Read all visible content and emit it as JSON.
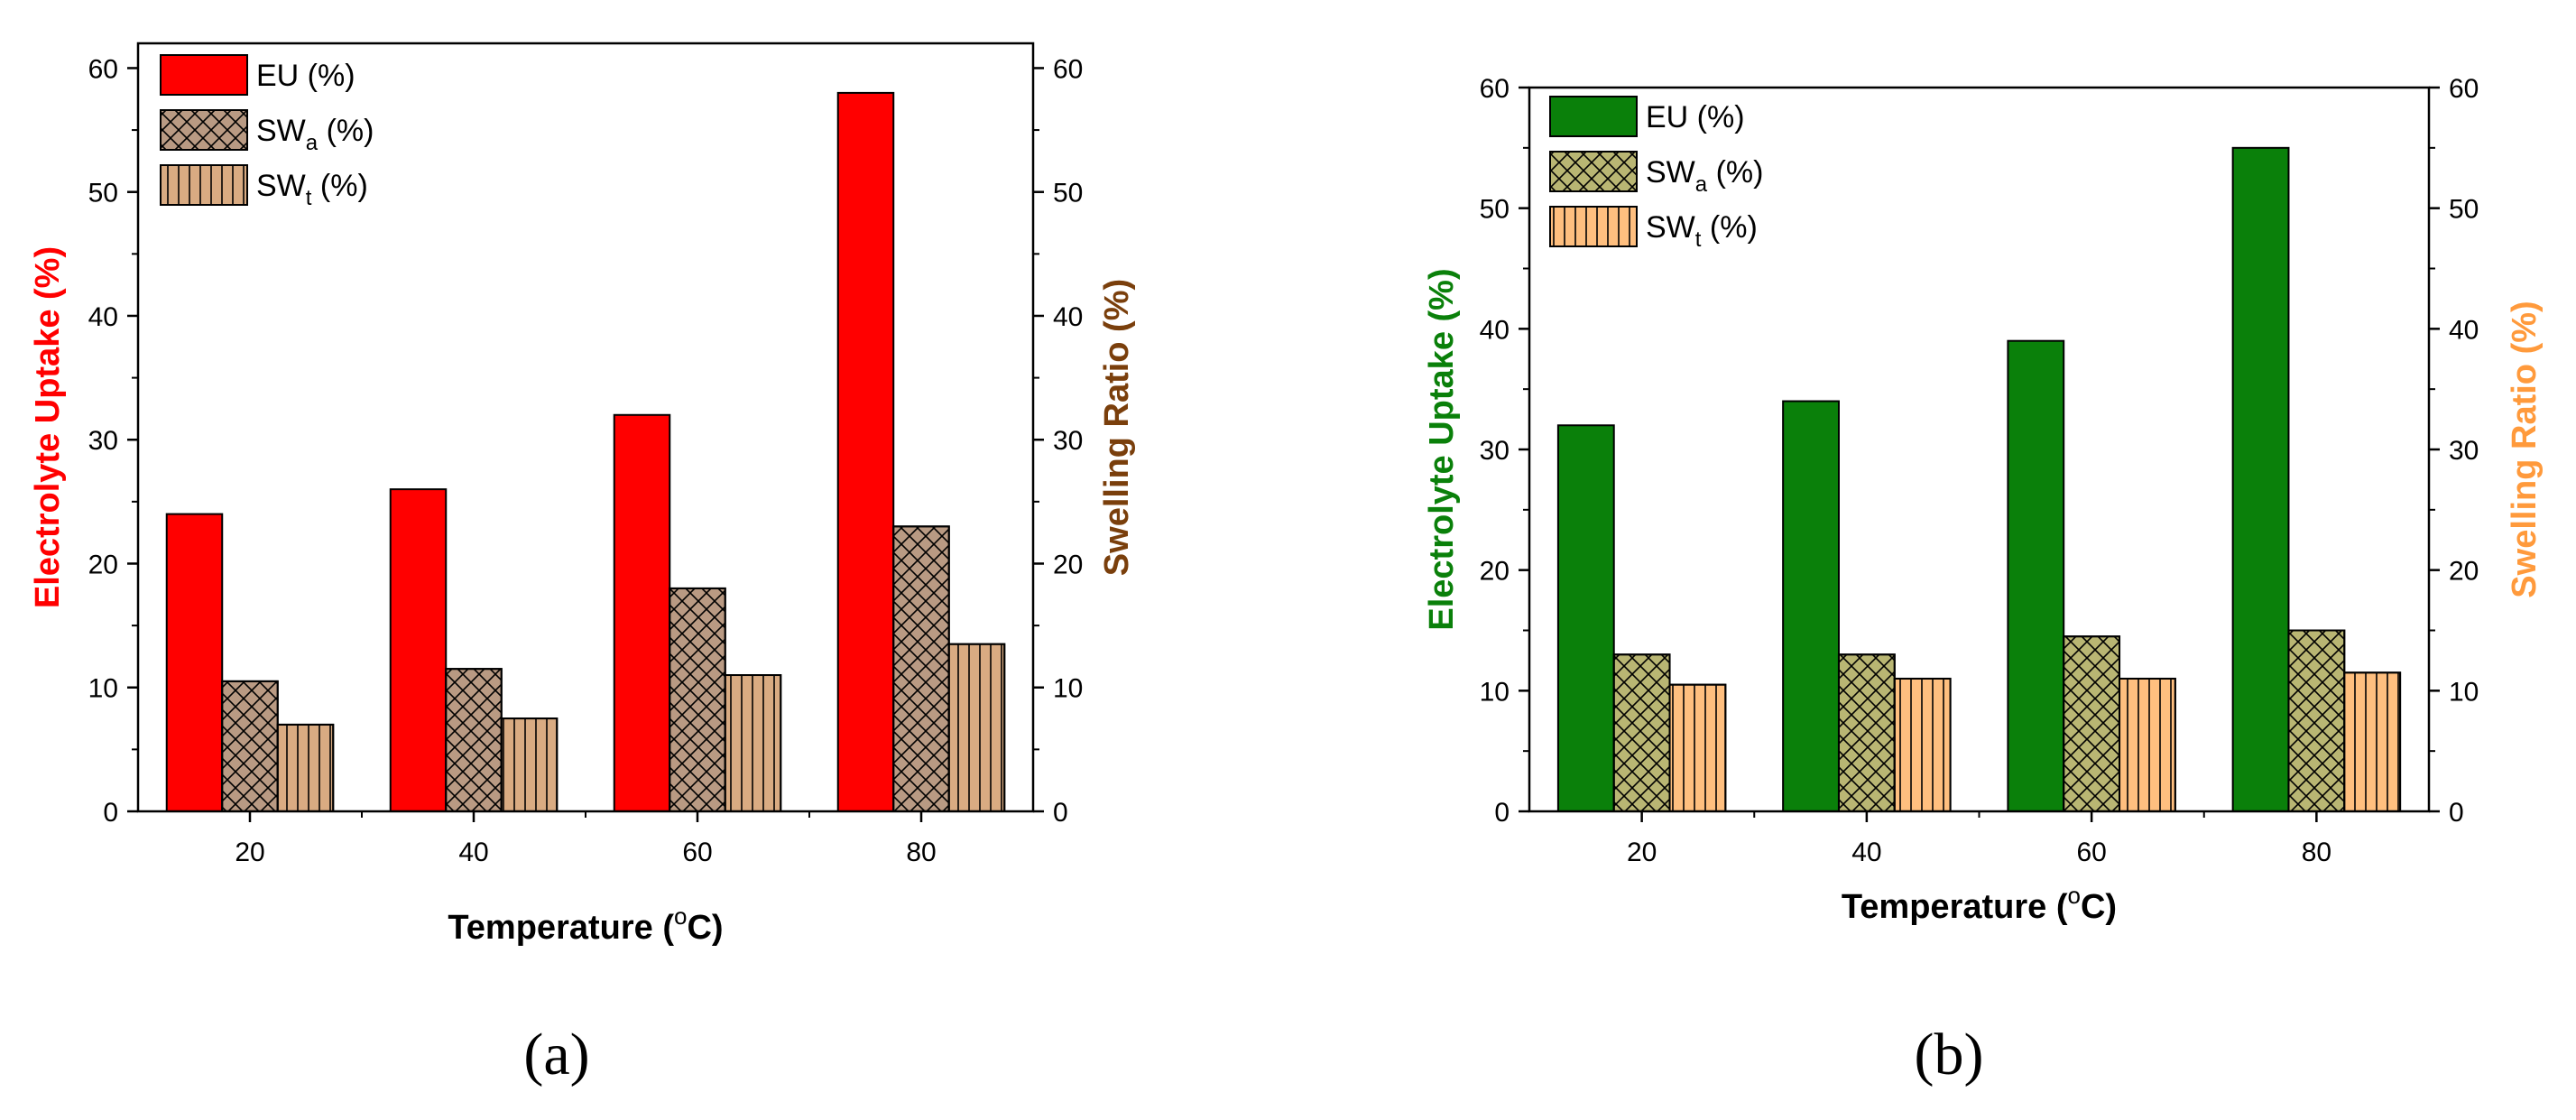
{
  "chart_data": [
    {
      "type": "bar",
      "panel_label": "(a)",
      "categories": [
        "20",
        "40",
        "60",
        "80"
      ],
      "series": [
        {
          "name": "EU (%)",
          "legend": {
            "base": "EU",
            "sub": "",
            "tail": " (%)"
          },
          "axis": "left",
          "color": "#ff0000",
          "pattern": "solid",
          "values": [
            24,
            26,
            32,
            58
          ]
        },
        {
          "name": "SWa (%)",
          "legend": {
            "base": "SW",
            "sub": "a",
            "tail": " (%)"
          },
          "axis": "right",
          "color": "#b99a83",
          "pattern": "crosshatch",
          "values": [
            10.5,
            11.5,
            18,
            23
          ]
        },
        {
          "name": "SWt (%)",
          "legend": {
            "base": "SW",
            "sub": "t",
            "tail": " (%)"
          },
          "axis": "right",
          "color": "#d9ab82",
          "pattern": "vertical",
          "values": [
            7,
            7.5,
            11,
            13.5
          ]
        }
      ],
      "xlabel": {
        "pre": "Temperature (",
        "sup": "o",
        "post": "C)"
      },
      "ylabel_left": "Electrolyte Uptake (%)",
      "ylabel_left_color": "#ff0000",
      "ylabel_right_parts": [
        {
          "text": "Swelling Ratio (%)",
          "color": "#7a3f0c"
        }
      ],
      "ylim": [
        0,
        62
      ],
      "yticks": [
        0,
        10,
        20,
        30,
        40,
        50,
        60
      ],
      "legend_position": "top-left"
    },
    {
      "type": "bar",
      "panel_label": "(b)",
      "categories": [
        "20",
        "40",
        "60",
        "80"
      ],
      "series": [
        {
          "name": "EU (%)",
          "legend": {
            "base": "EU",
            "sub": "",
            "tail": " (%)"
          },
          "axis": "left",
          "color": "#0a800a",
          "pattern": "solid",
          "values": [
            32,
            34,
            39,
            55
          ]
        },
        {
          "name": "SWa (%)",
          "legend": {
            "base": "SW",
            "sub": "a",
            "tail": " (%)"
          },
          "axis": "right",
          "color": "#b9b673",
          "pattern": "crosshatch",
          "values": [
            13,
            13,
            14.5,
            15
          ]
        },
        {
          "name": "SWt (%)",
          "legend": {
            "base": "SW",
            "sub": "t",
            "tail": " (%)"
          },
          "axis": "right",
          "color": "#ffbf7f",
          "pattern": "vertical",
          "values": [
            10.5,
            11,
            11,
            11.5
          ]
        }
      ],
      "xlabel": {
        "pre": "Temperature (",
        "sup": "o",
        "post": "C)"
      },
      "ylabel_left": "Electrolyte Uptake (%)",
      "ylabel_left_color": "#0a800a",
      "ylabel_right_parts": [
        {
          "text": "Swelling ",
          "color": "#ff9a3c"
        },
        {
          "text": "Ratio (%)",
          "color": "#ff9a3c"
        }
      ],
      "ylim": [
        0,
        60
      ],
      "yticks": [
        0,
        10,
        20,
        30,
        40,
        50,
        60
      ],
      "legend_position": "top-left"
    }
  ]
}
